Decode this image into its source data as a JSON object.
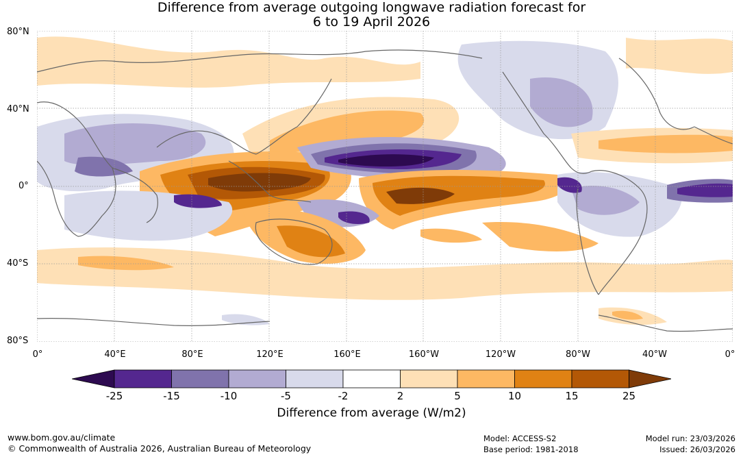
{
  "title": {
    "line1": "Difference from average outgoing longwave radiation forecast for",
    "line2": "6 to 19 April 2026"
  },
  "lat_labels": [
    "80°N",
    "40°N",
    "0°",
    "40°S",
    "80°S"
  ],
  "lon_labels": [
    "0°",
    "40°E",
    "80°E",
    "120°E",
    "160°E",
    "160°W",
    "120°W",
    "80°W",
    "40°W",
    "0°"
  ],
  "colorbar": {
    "ticks": [
      "-25",
      "-15",
      "-10",
      "-5",
      "-2",
      "2",
      "5",
      "10",
      "15",
      "25"
    ],
    "colors": [
      "#2d0a50",
      "#54278f",
      "#8073ac",
      "#b2abd2",
      "#d8daeb",
      "#ffffff",
      "#fee0b6",
      "#fdb863",
      "#e08214",
      "#b35806",
      "#7f3b08"
    ],
    "label": "Difference from average (W/m2)"
  },
  "footer": {
    "url": "www.bom.gov.au/climate",
    "copyright": "© Commonwealth of Australia 2026, Australian Bureau of Meteorology",
    "model": "Model: ACCESS-S2",
    "base_period": "Base period: 1981-2018",
    "model_run": "Model run: 23/03/2026",
    "issued": "Issued: 26/03/2026"
  }
}
